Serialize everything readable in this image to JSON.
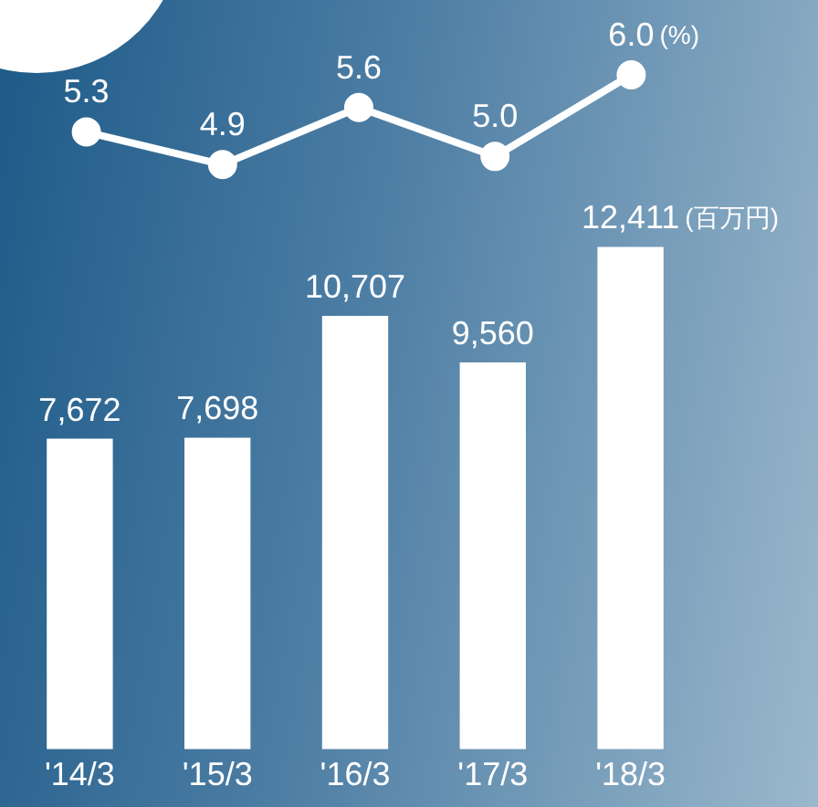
{
  "chart_data": [
    {
      "type": "bar",
      "categories": [
        "'14/3",
        "'15/3",
        "'16/3",
        "'17/3",
        "'18/3"
      ],
      "color": "#ffffff",
      "values": [
        7672,
        7698,
        10707,
        9560,
        12411
      ],
      "value_labels": [
        "7,672",
        "7,698",
        "10,707",
        "9,560",
        "12,411"
      ],
      "tick_labels": "x",
      "grid": false,
      "legend": false,
      "annotations": [
        "(百万円)"
      ]
    },
    {
      "type": "line",
      "categories": [
        null,
        null,
        null,
        null,
        null
      ],
      "color": "#ffffff",
      "values": [
        5.3,
        4.9,
        5.6,
        5.0,
        6.0
      ],
      "value_labels": [
        "5.3",
        "4.9",
        "5.6",
        "5.0",
        "6.0"
      ],
      "tick_labels": false,
      "grid": false,
      "legend": false,
      "marker": "circle",
      "line_style": "solid",
      "annotations": [
        "(%)"
      ]
    }
  ]
}
